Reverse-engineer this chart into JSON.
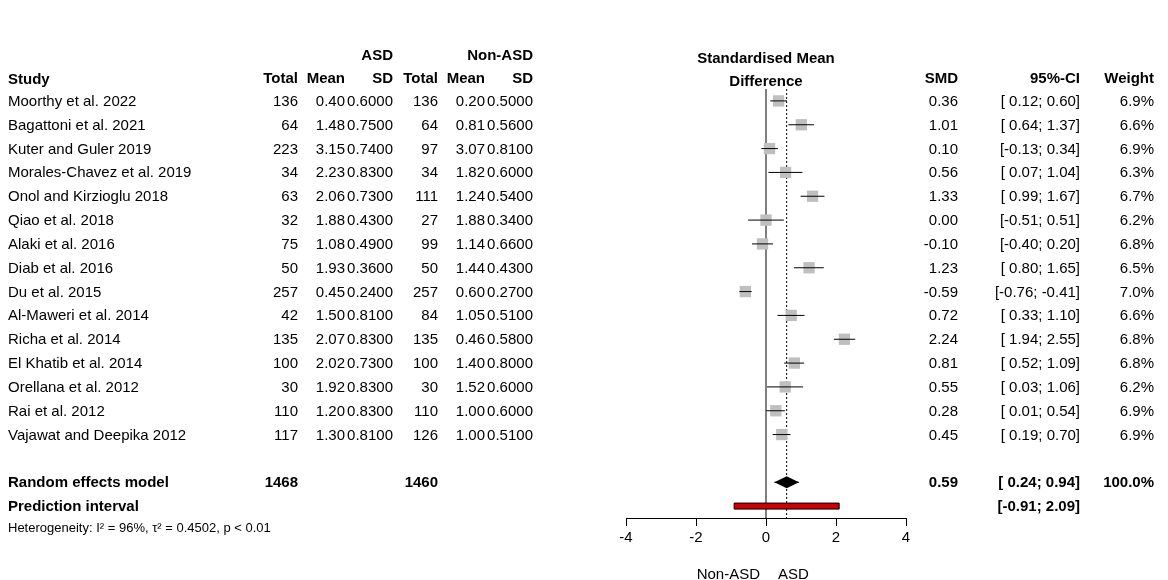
{
  "chart_data": [
    {
      "type": "other",
      "ylabel": "Study",
      "categories": [
        "Total",
        "Mean",
        "SD",
        "Total",
        "Mean",
        "SD"
      ],
      "y_categories": [
        "Moorthy et al. 2022",
        "Bagattoni et al. 2021",
        "Kuter and Guler 2019",
        "Morales-Chavez et al. 2019",
        "Onol and Kirzioglu 2018",
        "Qiao et al. 2018",
        "Alaki et al. 2016",
        "Diab et al. 2016",
        "Du et al. 2015",
        "Al-Maweri et al. 2014",
        "Richa et al. 2014",
        "El Khatib et al. 2014",
        "Orellana et al. 2012",
        "Rai et al. 2012",
        "Vajawat and Deepika 2012",
        null,
        "Random effects model",
        "Prediction interval"
      ],
      "cell_labels": [
        [
          "136",
          "0.40",
          "0.6000",
          "136",
          "0.20",
          "0.5000"
        ],
        [
          "64",
          "1.48",
          "0.7500",
          "64",
          "0.81",
          "0.5600"
        ],
        [
          "223",
          "3.15",
          "0.7400",
          "97",
          "3.07",
          "0.8100"
        ],
        [
          "34",
          "2.23",
          "0.8300",
          "34",
          "1.82",
          "0.6000"
        ],
        [
          "63",
          "2.06",
          "0.7300",
          "111",
          "1.24",
          "0.5400"
        ],
        [
          "32",
          "1.88",
          "0.4300",
          "27",
          "1.88",
          "0.3400"
        ],
        [
          "75",
          "1.08",
          "0.4900",
          "99",
          "1.14",
          "0.6600"
        ],
        [
          "50",
          "1.93",
          "0.3600",
          "50",
          "1.44",
          "0.4300"
        ],
        [
          "257",
          "0.45",
          "0.2400",
          "257",
          "0.60",
          "0.2700"
        ],
        [
          "42",
          "1.50",
          "0.8100",
          "84",
          "1.05",
          "0.5100"
        ],
        [
          "135",
          "2.07",
          "0.8300",
          "135",
          "0.46",
          "0.5800"
        ],
        [
          "100",
          "2.02",
          "0.7300",
          "100",
          "1.40",
          "0.8000"
        ],
        [
          "30",
          "1.92",
          "0.8300",
          "30",
          "1.52",
          "0.6000"
        ],
        [
          "110",
          "1.20",
          "0.8300",
          "110",
          "1.00",
          "0.6000"
        ],
        [
          "117",
          "1.30",
          "0.8100",
          "126",
          "1.00",
          "0.5100"
        ],
        [
          null,
          null,
          null,
          null,
          null,
          null
        ],
        [
          "1468",
          null,
          null,
          "1460",
          null,
          null
        ],
        [
          null,
          null,
          null,
          null,
          null,
          null
        ]
      ],
      "annotations": [
        "ASD",
        "Non-ASD",
        "Heterogeneity: I² = 96%, τ² = 0.4502, p < 0.01"
      ]
    },
    {
      "type": "scatter",
      "title": "Standardised Mean Difference",
      "orientation": "horizontal",
      "categories": [
        null,
        null,
        null,
        null,
        null,
        null,
        null,
        null,
        null,
        null,
        null,
        null,
        null,
        null,
        null,
        null,
        null,
        null
      ],
      "tick_labels": "x",
      "xlim": [
        -4,
        4
      ],
      "xticks": [
        -4,
        -2,
        0,
        2,
        4
      ],
      "grid": false,
      "legend": false,
      "ref_lines": [
        {
          "axis": "x",
          "value": 0,
          "color": "#000000",
          "line_style": "solid"
        },
        {
          "axis": "x",
          "value": 0.59,
          "color": "#000000",
          "line_style": "dotted"
        }
      ],
      "annotations": [
        "Non-ASD",
        "ASD"
      ],
      "series": [
        {
          "type": "scatter",
          "marker": "square",
          "color": "#bfbfbf",
          "values": [
            0.36,
            1.01,
            0.1,
            0.56,
            1.33,
            0.0,
            -0.1,
            1.23,
            -0.59,
            0.72,
            2.24,
            0.81,
            0.55,
            0.28,
            0.45,
            null,
            null,
            null
          ],
          "errors": [
            [
              0.12,
              0.6
            ],
            [
              0.64,
              1.37
            ],
            [
              -0.13,
              0.34
            ],
            [
              0.07,
              1.04
            ],
            [
              0.99,
              1.67
            ],
            [
              -0.51,
              0.51
            ],
            [
              -0.4,
              0.2
            ],
            [
              0.8,
              1.65
            ],
            [
              -0.76,
              -0.41
            ],
            [
              0.33,
              1.1
            ],
            [
              1.94,
              2.55
            ],
            [
              0.52,
              1.09
            ],
            [
              0.03,
              1.06
            ],
            [
              0.01,
              0.54
            ],
            [
              0.19,
              0.7
            ],
            null,
            null,
            null
          ]
        },
        {
          "type": "scatter",
          "marker": "diamond",
          "color": "#000000",
          "values": [
            null,
            null,
            null,
            null,
            null,
            null,
            null,
            null,
            null,
            null,
            null,
            null,
            null,
            null,
            null,
            null,
            0.59,
            null
          ],
          "errors": [
            null,
            null,
            null,
            null,
            null,
            null,
            null,
            null,
            null,
            null,
            null,
            null,
            null,
            null,
            null,
            null,
            [
              0.24,
              0.94
            ],
            null
          ]
        },
        {
          "type": "bar",
          "color": "#cc0000",
          "base": [
            null,
            null,
            null,
            null,
            null,
            null,
            null,
            null,
            null,
            null,
            null,
            null,
            null,
            null,
            null,
            null,
            null,
            -0.91
          ],
          "values": [
            null,
            null,
            null,
            null,
            null,
            null,
            null,
            null,
            null,
            null,
            null,
            null,
            null,
            null,
            null,
            null,
            null,
            3.0
          ]
        }
      ]
    },
    {
      "type": "other",
      "categories": [
        "SMD",
        "95%-CI",
        "Weight"
      ],
      "cell_labels": [
        [
          "0.36",
          "[ 0.12; 0.60]",
          "6.9%"
        ],
        [
          "1.01",
          "[ 0.64; 1.37]",
          "6.6%"
        ],
        [
          "0.10",
          "[-0.13; 0.34]",
          "6.9%"
        ],
        [
          "0.56",
          "[ 0.07; 1.04]",
          "6.3%"
        ],
        [
          "1.33",
          "[ 0.99; 1.67]",
          "6.7%"
        ],
        [
          "0.00",
          "[-0.51; 0.51]",
          "6.2%"
        ],
        [
          "-0.10",
          "[-0.40; 0.20]",
          "6.8%"
        ],
        [
          "1.23",
          "[ 0.80; 1.65]",
          "6.5%"
        ],
        [
          "-0.59",
          "[-0.76; -0.41]",
          "7.0%"
        ],
        [
          "0.72",
          "[ 0.33; 1.10]",
          "6.6%"
        ],
        [
          "2.24",
          "[ 1.94; 2.55]",
          "6.8%"
        ],
        [
          "0.81",
          "[ 0.52; 1.09]",
          "6.8%"
        ],
        [
          "0.55",
          "[ 0.03; 1.06]",
          "6.2%"
        ],
        [
          "0.28",
          "[ 0.01; 0.54]",
          "6.9%"
        ],
        [
          "0.45",
          "[ 0.19; 0.70]",
          "6.9%"
        ],
        [
          null,
          null,
          null
        ],
        [
          "0.59",
          "[ 0.24; 0.94]",
          "100.0%"
        ],
        [
          null,
          "[-0.91; 2.09]",
          null
        ]
      ]
    }
  ]
}
